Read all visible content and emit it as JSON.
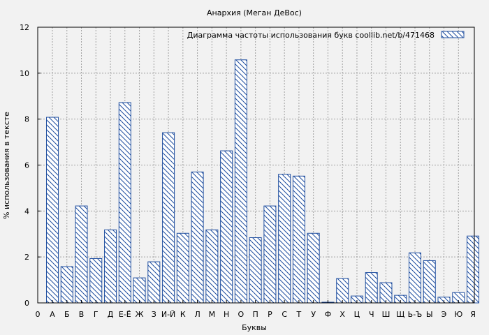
{
  "chart_data": {
    "type": "bar",
    "title": "Анархия (Меган ДеВос)",
    "xlabel": "Буквы",
    "ylabel": "% использования в тексте",
    "ylim": [
      0,
      12
    ],
    "yticks": [
      "0",
      "2",
      "4",
      "6",
      "8",
      "10",
      "12"
    ],
    "x_origin_label": "0",
    "grid": true,
    "legend_position": "top-right",
    "categories": [
      "А",
      "Б",
      "В",
      "Г",
      "Д",
      "Е-Ё",
      "Ж",
      "З",
      "И-Й",
      "К",
      "Л",
      "М",
      "Н",
      "О",
      "П",
      "Р",
      "С",
      "Т",
      "У",
      "Ф",
      "Х",
      "Ц",
      "Ч",
      "Ш",
      "Щ",
      "Ь-Ъ",
      "Ы",
      "Э",
      "Ю",
      "Я"
    ],
    "series": [
      {
        "name": "Диаграмма частоты использования букв  coollib.net/b/471468",
        "values": [
          8.08,
          1.58,
          4.22,
          1.93,
          3.18,
          8.72,
          1.09,
          1.79,
          7.41,
          3.03,
          5.7,
          3.18,
          6.62,
          10.58,
          2.84,
          4.22,
          5.6,
          5.52,
          3.03,
          0.03,
          1.06,
          0.3,
          1.32,
          0.88,
          0.33,
          2.18,
          1.84,
          0.25,
          0.45,
          2.91
        ]
      }
    ],
    "colors": {
      "bar_stroke": "#1f4e9f",
      "background": "#f2f2f2",
      "grid": "#a0a0a0"
    }
  }
}
